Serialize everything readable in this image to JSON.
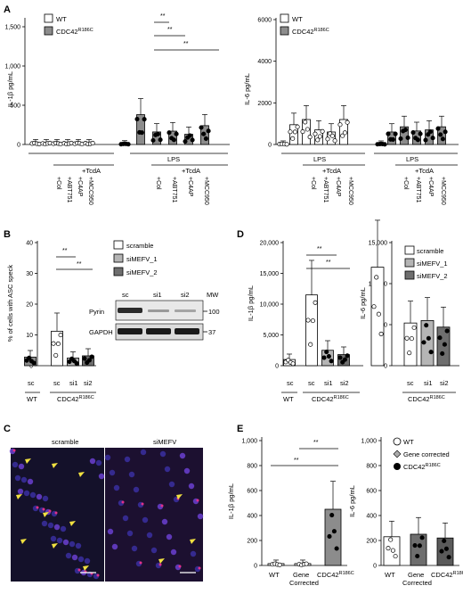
{
  "panels": {
    "a": "A",
    "b": "B",
    "c": "C",
    "d": "D",
    "e": "E"
  },
  "legend_wt_mut": [
    "WT",
    "CDC42R186C"
  ],
  "legend_sirna": [
    "scramble",
    "siMEFV_1",
    "siMEFV_2"
  ],
  "legend_e": [
    "WT",
    "Gene corrected",
    "CDC42R186C"
  ],
  "treatments_a": [
    "LPS",
    "+TcdA",
    "+Col",
    "+ABT751",
    "+C4AP",
    "+MCC950"
  ],
  "blot": {
    "labels": [
      "sc",
      "si1",
      "si2",
      "MW"
    ],
    "proteins": [
      "Pyrin",
      "GAPDH"
    ],
    "mw": [
      "100",
      "37"
    ]
  },
  "micro": {
    "left": "scramble",
    "right": "siMEFV"
  },
  "chart_data": [
    {
      "id": "A-left",
      "type": "bar",
      "ylabel": "IL-1β pg/mL",
      "ylim": [
        0,
        1500
      ],
      "yticks": [
        "0",
        "500",
        "1,000",
        "1,500"
      ],
      "groups": [
        "WT",
        "CDC42R186C"
      ],
      "values": [
        20,
        20,
        20,
        20,
        20,
        20,
        10,
        380,
        160,
        170,
        130,
        240
      ],
      "sig": [
        "**",
        "**",
        "**"
      ]
    },
    {
      "id": "A-right",
      "type": "bar",
      "ylabel": "IL-6 pg/mL",
      "ylim": [
        0,
        6000
      ],
      "yticks": [
        "0",
        "2000",
        "4000",
        "6000"
      ],
      "values": [
        30,
        950,
        1200,
        700,
        600,
        1200,
        30,
        600,
        850,
        650,
        700,
        850
      ]
    },
    {
      "id": "B",
      "type": "bar",
      "ylabel": "% of cells with ASC speck",
      "ylim": [
        0,
        40
      ],
      "yticks": [
        "0",
        "10",
        "20",
        "30",
        "40"
      ],
      "categories": [
        "sc",
        "sc",
        "si1",
        "si2"
      ],
      "groups": [
        "WT",
        "CDC42R186C"
      ],
      "values": [
        2.8,
        11.2,
        2.5,
        3.2
      ],
      "sig": [
        "**",
        "**"
      ]
    },
    {
      "id": "D-left",
      "type": "bar",
      "ylabel": "IL-1β pg/mL",
      "ylim": [
        0,
        20000
      ],
      "yticks": [
        "0",
        "5,000",
        "10,000",
        "15,000",
        "20,000"
      ],
      "categories": [
        "sc",
        "sc",
        "si1",
        "si2"
      ],
      "values": [
        1000,
        11500,
        2500,
        1800
      ],
      "sig": [
        "**",
        "**"
      ]
    },
    {
      "id": "D-right",
      "type": "bar",
      "ylabel": "IL-6 pg/mL",
      "ylim": [
        0,
        15000
      ],
      "yticks": [
        "0",
        "5,000",
        "10,000",
        "15,000"
      ],
      "categories": [
        "sc",
        "sc",
        "si1",
        "si2"
      ],
      "values": [
        12000,
        5200,
        5500,
        4700
      ]
    },
    {
      "id": "E-left",
      "type": "bar",
      "ylabel": "IL-1β pg/mL",
      "ylim": [
        0,
        1000
      ],
      "yticks": [
        "0",
        "200",
        "400",
        "600",
        "800",
        "1,000"
      ],
      "categories": [
        "WT",
        "Gene Corrected",
        "CDC42R186C"
      ],
      "values": [
        15,
        15,
        450
      ],
      "sig": [
        "**",
        "**"
      ]
    },
    {
      "id": "E-right",
      "type": "bar",
      "ylabel": "IL-6 pg/mL",
      "ylim": [
        0,
        1000
      ],
      "yticks": [
        "0",
        "200",
        "400",
        "600",
        "800",
        "1,000"
      ],
      "categories": [
        "WT",
        "Gene Corrected",
        "CDC42R186C"
      ],
      "values": [
        230,
        250,
        220
      ]
    }
  ]
}
